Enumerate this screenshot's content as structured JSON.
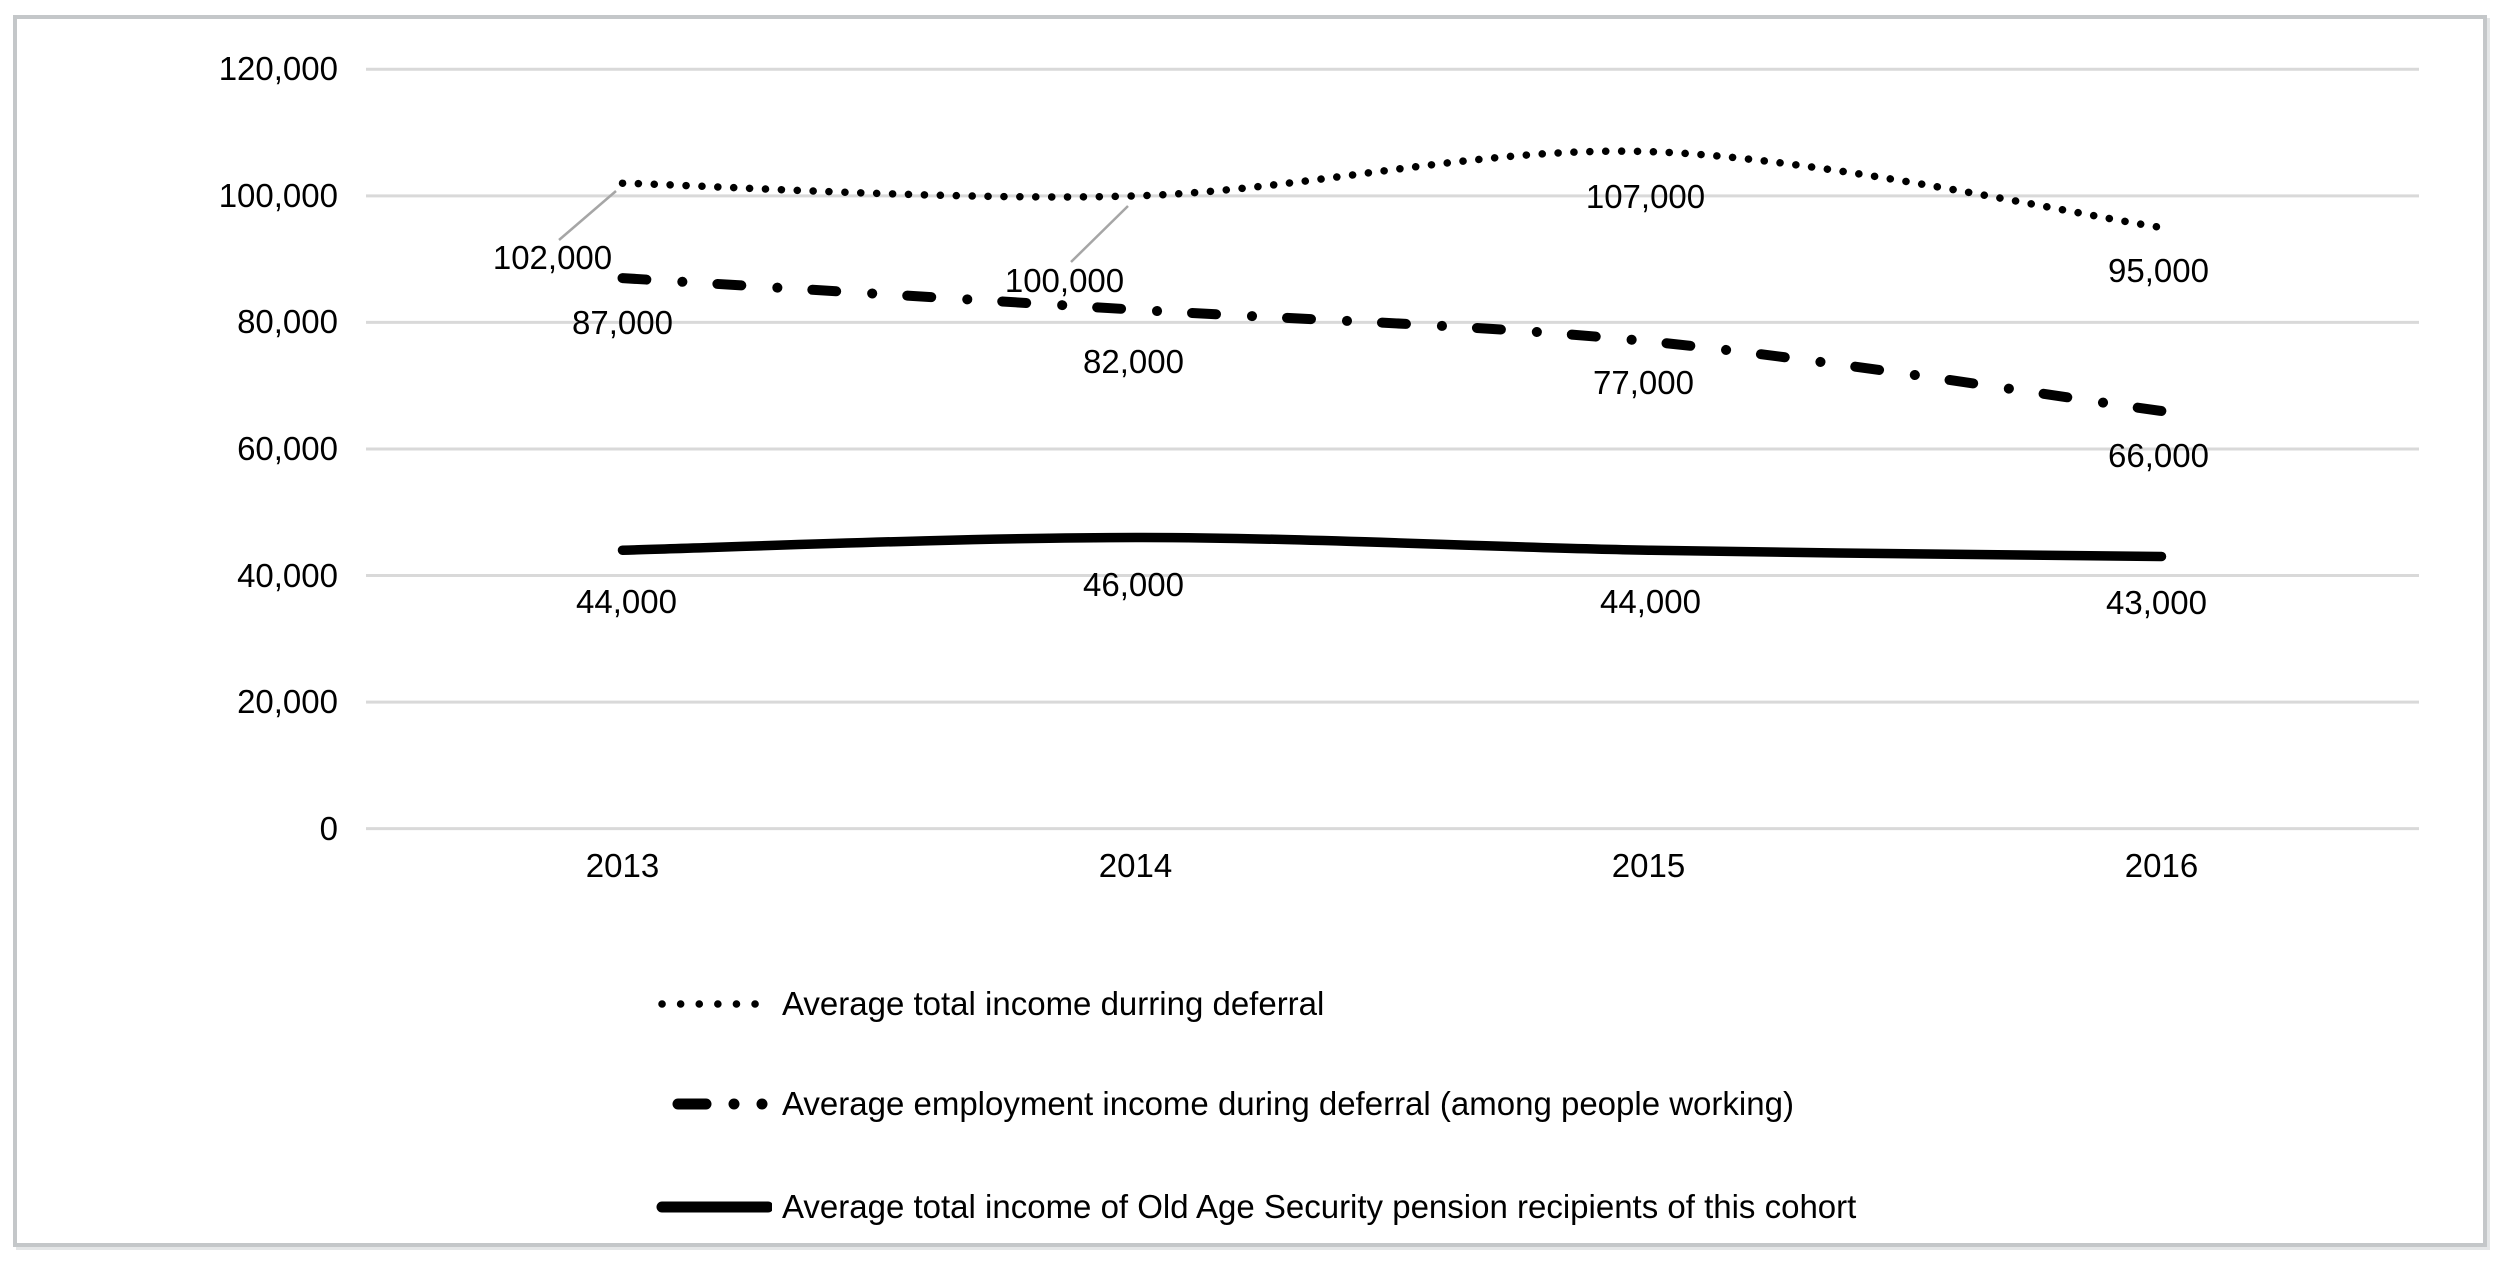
{
  "chart_data": {
    "type": "line",
    "categories": [
      "2013",
      "2014",
      "2015",
      "2016"
    ],
    "series": [
      {
        "name": "Average total income durring deferral",
        "style": "dotted",
        "values": [
          102000,
          100000,
          107000,
          95000
        ],
        "data_labels": [
          "102,000",
          "100,000",
          "107,000",
          "95,000"
        ]
      },
      {
        "name": "Average employment income during deferral (among people working)",
        "style": "dash-dot",
        "values": [
          87000,
          82000,
          77000,
          66000
        ],
        "data_labels": [
          "87,000",
          "82,000",
          "77,000",
          "66,000"
        ]
      },
      {
        "name": "Average total income of Old Age Security pension recipients of this cohort",
        "style": "solid",
        "values": [
          44000,
          46000,
          44000,
          43000
        ],
        "data_labels": [
          "44,000",
          "46,000",
          "44,000",
          "43,000"
        ]
      }
    ],
    "y_axis": {
      "ticks": [
        "120,000",
        "100,000",
        "80,000",
        "60,000",
        "40,000",
        "20,000",
        "0"
      ],
      "tick_values": [
        120000,
        100000,
        80000,
        60000,
        40000,
        20000,
        0
      ],
      "min": 0,
      "max": 120000
    },
    "grid": true,
    "legend_position": "bottom-left",
    "colors": {
      "series_line": "#000000",
      "gridline": "#d9d9d9",
      "leader_line": "#a6a6a6",
      "text": "#000000",
      "frame_border": "#c4c7c9",
      "background": "#ffffff"
    }
  }
}
